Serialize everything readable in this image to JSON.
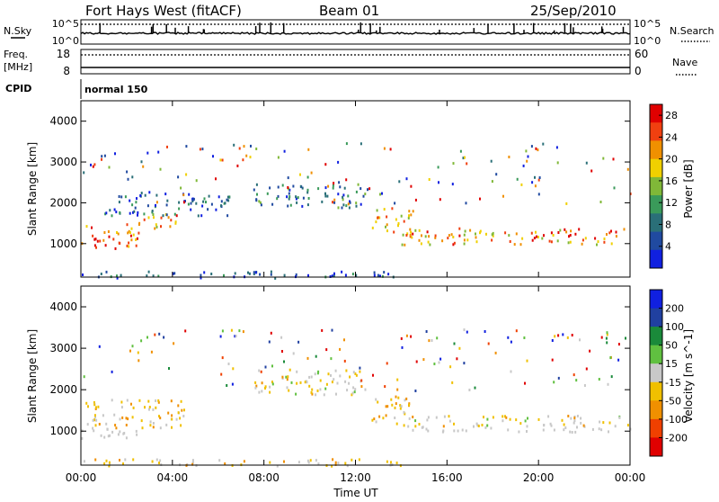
{
  "header": {
    "station": "Fort Hays West (fitACF)",
    "beam": "Beam 01",
    "date": "25/Sep/2010"
  },
  "top_panels": {
    "nsky_label": "N.Sky",
    "nsearch_label": "N.Search",
    "nsky_ticks": [
      "10^5",
      "10^0"
    ],
    "nsearch_ticks": [
      "10^5",
      "10^0"
    ],
    "freq_label": "Freq.",
    "freq_unit": "[MHz]",
    "freq_ticks": [
      "18",
      "8"
    ],
    "nave_label": "Nave",
    "nave_ticks": [
      "60",
      "0"
    ],
    "cpid_label": "CPID",
    "cpid_text": "normal 150"
  },
  "colors": {
    "power_scale": [
      "#1020e0",
      "#204aa0",
      "#2a6f78",
      "#3a9a5a",
      "#80b838",
      "#f0d000",
      "#f09000",
      "#f04010",
      "#e00000"
    ],
    "velocity_scale": [
      "#1020e0",
      "#2040a0",
      "#1a8a3a",
      "#60c040",
      "#c8c8c8",
      "#f0c000",
      "#f09000",
      "#f04000",
      "#e00000"
    ],
    "ground_scatter": "#c8c8c8"
  },
  "chart_data": [
    {
      "type": "heatmap",
      "title": "",
      "xlabel": "Time UT",
      "ylabel": "Slant Range [km]",
      "xlim": [
        "00:00",
        "24:00"
      ],
      "ylim": [
        180,
        4500
      ],
      "x_ticks": [
        "00:00",
        "04:00",
        "08:00",
        "12:00",
        "16:00",
        "20:00",
        "00:00"
      ],
      "y_ticks": [
        "1000",
        "2000",
        "3000",
        "4000"
      ],
      "colorbar": {
        "label": "Power [dB]",
        "range": [
          0,
          30
        ],
        "ticks": [
          "4",
          "8",
          "12",
          "16",
          "20",
          "24",
          "28"
        ]
      },
      "features": [
        {
          "name": "main echo band",
          "time": [
            0.0,
            2.5
          ],
          "range_km": [
            850,
            1500
          ],
          "value": 24
        },
        {
          "name": "ascending band",
          "time": [
            2.5,
            4.5
          ],
          "range_km": [
            1400,
            1800
          ],
          "value": 20
        },
        {
          "name": "upper band",
          "time": [
            1.0,
            6.5
          ],
          "range_km": [
            1700,
            2300
          ],
          "value": 6
        },
        {
          "name": "morning band",
          "time": [
            7.5,
            12.5
          ],
          "range_km": [
            1900,
            2500
          ],
          "value": 8
        },
        {
          "name": "afternoon echoes",
          "time": [
            12.7,
            14.5
          ],
          "range_km": [
            1200,
            1900
          ],
          "value": 18
        },
        {
          "name": "evening band",
          "time": [
            14.0,
            24.0
          ],
          "range_km": [
            1000,
            1400
          ],
          "value": 22
        },
        {
          "name": "near range",
          "time": [
            0.0,
            14.0
          ],
          "range_km": [
            180,
            350
          ],
          "value": 6
        }
      ]
    },
    {
      "type": "heatmap",
      "title": "",
      "xlabel": "Time UT",
      "ylabel": "Slant Range [km]",
      "xlim": [
        "00:00",
        "24:00"
      ],
      "ylim": [
        180,
        4500
      ],
      "x_ticks": [
        "00:00",
        "04:00",
        "08:00",
        "12:00",
        "16:00",
        "20:00",
        "00:00"
      ],
      "y_ticks": [
        "1000",
        "2000",
        "3000",
        "4000"
      ],
      "colorbar": {
        "label": "Velocity [m s^-1]",
        "range": [
          -250,
          250
        ],
        "ticks": [
          "200",
          "100",
          "50",
          "15",
          "-15",
          "-50",
          "-100",
          "-200"
        ]
      },
      "features": [
        {
          "name": "ground scatter band",
          "time": [
            0.0,
            3.0
          ],
          "range_km": [
            850,
            1100
          ],
          "value": 0
        },
        {
          "name": "mixed echoes",
          "time": [
            0.0,
            4.5
          ],
          "range_km": [
            1100,
            1800
          ],
          "value": -40
        },
        {
          "name": "morning band",
          "time": [
            7.5,
            12.5
          ],
          "range_km": [
            1900,
            2500
          ],
          "value": -20
        },
        {
          "name": "afternoon echoes",
          "time": [
            12.7,
            14.5
          ],
          "range_km": [
            1200,
            1900
          ],
          "value": -60
        },
        {
          "name": "evening ground scatter",
          "time": [
            14.0,
            24.0
          ],
          "range_km": [
            1000,
            1150
          ],
          "value": 0
        },
        {
          "name": "evening band",
          "time": [
            14.0,
            24.0
          ],
          "range_km": [
            1150,
            1400
          ],
          "value": -30
        },
        {
          "name": "near range",
          "time": [
            0.0,
            14.0
          ],
          "range_km": [
            180,
            350
          ],
          "value": -50
        }
      ]
    }
  ]
}
